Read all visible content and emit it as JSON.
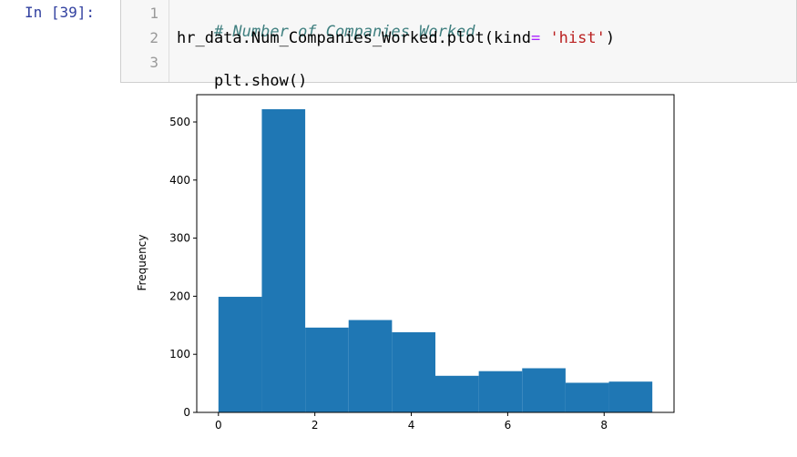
{
  "prompt": "In [39]:",
  "code": {
    "lines": [
      {
        "no": "1",
        "comment": "# Number of Companies Worked"
      },
      {
        "no": "2",
        "pre": "hr_data.Num_Companies_Worked.plot(kind",
        "op": "=",
        "sp": " ",
        "str": "'hist'",
        "post": ")"
      },
      {
        "no": "3",
        "text": "plt.show()"
      }
    ]
  },
  "chart_data": {
    "type": "bar",
    "subtype": "histogram",
    "ylabel": "Frequency",
    "xlabel": "",
    "title": "",
    "bin_edges": [
      0,
      0.9,
      1.8,
      2.7,
      3.6,
      4.5,
      5.4,
      6.3,
      7.2,
      8.1,
      9.0
    ],
    "values": [
      199,
      522,
      146,
      159,
      138,
      63,
      71,
      76,
      51,
      53
    ],
    "xlim": [
      -0.45,
      9.45
    ],
    "ylim": [
      0,
      547
    ],
    "xticks": [
      0,
      2,
      4,
      6,
      8
    ],
    "xtick_labels": [
      "0",
      "2",
      "4",
      "6",
      "8"
    ],
    "yticks": [
      0,
      100,
      200,
      300,
      400,
      500
    ],
    "ytick_labels": [
      "0",
      "100",
      "200",
      "300",
      "400",
      "500"
    ],
    "bar_color": "#1f77b4",
    "grid": false,
    "legend": "none"
  }
}
